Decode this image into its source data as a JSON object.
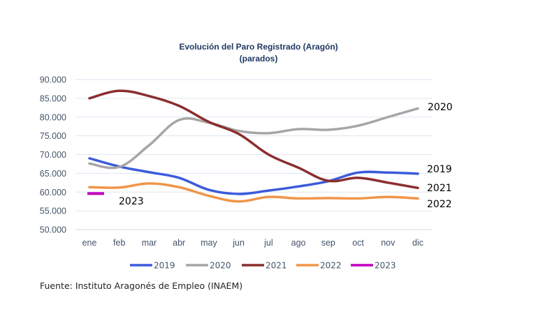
{
  "chart_data": {
    "type": "line",
    "title": "Evolución del Paro Registrado (Aragón)",
    "subtitle": "(parados)",
    "xlabel": "",
    "ylabel": "",
    "categories": [
      "ene",
      "feb",
      "mar",
      "abr",
      "may",
      "jun",
      "jul",
      "ago",
      "sep",
      "oct",
      "nov",
      "dic"
    ],
    "ylim": [
      50000,
      90000
    ],
    "yticks": [
      50000,
      55000,
      60000,
      65000,
      70000,
      75000,
      80000,
      85000,
      90000
    ],
    "ytick_labels": [
      "50.000",
      "55.000",
      "60.000",
      "65.000",
      "70.000",
      "75.000",
      "80.000",
      "85.000",
      "90.000"
    ],
    "grid": true,
    "legend_position": "bottom",
    "series": [
      {
        "name": "2019",
        "color": "#3b5bdb",
        "values": [
          69000,
          66800,
          65300,
          63800,
          60600,
          59500,
          60400,
          61500,
          62900,
          65200,
          65200,
          64900
        ]
      },
      {
        "name": "2020",
        "color": "#a6a6a6",
        "values": [
          67600,
          66700,
          72500,
          79200,
          78500,
          76300,
          75700,
          76800,
          76600,
          77700,
          80000,
          82300
        ]
      },
      {
        "name": "2021",
        "color": "#8b2e2e",
        "values": [
          85000,
          87000,
          85600,
          83000,
          78700,
          75500,
          70000,
          66500,
          63000,
          63800,
          62500,
          61100
        ]
      },
      {
        "name": "2022",
        "color": "#f0954a",
        "values": [
          61300,
          61200,
          62300,
          61300,
          59000,
          57500,
          58700,
          58300,
          58400,
          58300,
          58700,
          58300
        ]
      },
      {
        "name": "2023",
        "color": "#c000c0",
        "values": [
          59600
        ]
      }
    ],
    "annotations": [
      {
        "text": "2020",
        "series": "2020"
      },
      {
        "text": "2019",
        "series": "2019"
      },
      {
        "text": "2021",
        "series": "2021"
      },
      {
        "text": "2022",
        "series": "2022"
      },
      {
        "text": "2023",
        "series": "2023"
      }
    ]
  },
  "source": "Fuente: Instituto Aragonés de Empleo (INAEM)"
}
